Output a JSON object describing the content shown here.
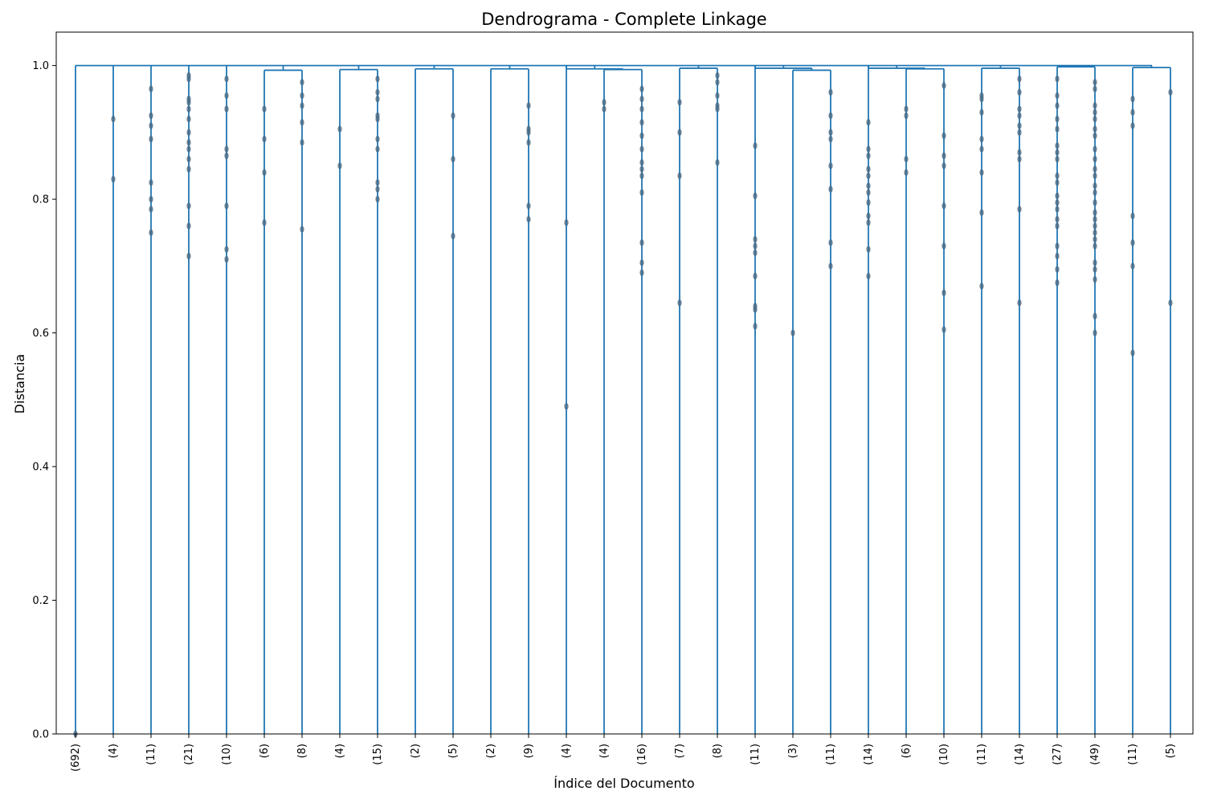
{
  "chart_data": {
    "type": "dendrogram",
    "title": "Dendrograma - Complete Linkage",
    "xlabel": "Índice del Documento",
    "ylabel": "Distancia",
    "ylim": [
      0.0,
      1.05
    ],
    "yticks": [
      "0.0",
      "0.2",
      "0.4",
      "0.6",
      "0.8",
      "1.0"
    ],
    "line_color": "#1f77b4",
    "grid": false,
    "leaves": [
      "(692)",
      "(4)",
      "(11)",
      "(21)",
      "(10)",
      "(6)",
      "(8)",
      "(4)",
      "(15)",
      "(2)",
      "(5)",
      "(2)",
      "(9)",
      "(4)",
      "(4)",
      "(16)",
      "(7)",
      "(8)",
      "(11)",
      "(3)",
      "(11)",
      "(14)",
      "(6)",
      "(10)",
      "(11)",
      "(14)",
      "(27)",
      "(49)",
      "(11)",
      "(5)"
    ],
    "pairs": [
      {
        "leaves": [
          5,
          6
        ],
        "height": 0.993
      },
      {
        "leaves": [
          7,
          8
        ],
        "height": 0.994
      },
      {
        "leaves": [
          9,
          10
        ],
        "height": 0.995
      },
      {
        "leaves": [
          11,
          12
        ],
        "height": 0.995
      },
      {
        "leaves": [
          14,
          15
        ],
        "height": 0.994
      },
      {
        "leaves": [
          16,
          17
        ],
        "height": 0.996
      },
      {
        "leaves": [
          19,
          20
        ],
        "height": 0.993
      },
      {
        "leaves": [
          22,
          23
        ],
        "height": 0.995
      },
      {
        "leaves": [
          24,
          25
        ],
        "height": 0.996
      },
      {
        "leaves": [
          26,
          27
        ],
        "height": 0.998
      },
      {
        "leaves": [
          28,
          29
        ],
        "height": 0.997
      }
    ],
    "pair_joins": [
      {
        "leaf": 13,
        "pair": 4,
        "height": 0.995
      },
      {
        "leaf": 18,
        "pair": 6,
        "height": 0.996
      },
      {
        "leaf": 21,
        "pair": 7,
        "height": 0.996
      }
    ],
    "top_height": 1.0,
    "internal_points": [
      [
        0.0
      ],
      [
        0.92,
        0.83
      ],
      [
        0.965,
        0.925,
        0.91,
        0.89,
        0.825,
        0.8,
        0.785,
        0.75
      ],
      [
        0.985,
        0.98,
        0.95,
        0.945,
        0.935,
        0.92,
        0.9,
        0.885,
        0.875,
        0.86,
        0.845,
        0.79,
        0.76,
        0.715
      ],
      [
        0.98,
        0.955,
        0.935,
        0.875,
        0.865,
        0.79,
        0.725,
        0.71
      ],
      [
        0.935,
        0.89,
        0.84,
        0.765
      ],
      [
        0.975,
        0.955,
        0.94,
        0.915,
        0.885,
        0.755
      ],
      [
        0.905,
        0.85
      ],
      [
        0.98,
        0.96,
        0.95,
        0.925,
        0.92,
        0.89,
        0.875,
        0.825,
        0.815,
        0.8
      ],
      [],
      [
        0.925,
        0.86,
        0.745
      ],
      [],
      [
        0.94,
        0.905,
        0.9,
        0.885,
        0.79,
        0.77
      ],
      [
        0.765,
        0.49
      ],
      [
        0.945,
        0.935
      ],
      [
        0.965,
        0.95,
        0.935,
        0.915,
        0.895,
        0.875,
        0.855,
        0.845,
        0.835,
        0.81,
        0.735,
        0.705,
        0.69
      ],
      [
        0.945,
        0.9,
        0.835,
        0.645
      ],
      [
        0.985,
        0.975,
        0.955,
        0.94,
        0.935,
        0.855
      ],
      [
        0.88,
        0.805,
        0.74,
        0.73,
        0.72,
        0.685,
        0.64,
        0.635,
        0.61
      ],
      [
        0.6
      ],
      [
        0.96,
        0.925,
        0.9,
        0.89,
        0.85,
        0.815,
        0.735,
        0.7
      ],
      [
        0.915,
        0.875,
        0.865,
        0.845,
        0.835,
        0.82,
        0.81,
        0.795,
        0.775,
        0.765,
        0.725,
        0.685
      ],
      [
        0.935,
        0.925,
        0.86,
        0.84
      ],
      [
        0.97,
        0.895,
        0.865,
        0.85,
        0.79,
        0.73,
        0.66,
        0.605
      ],
      [
        0.955,
        0.95,
        0.93,
        0.89,
        0.875,
        0.84,
        0.78,
        0.67
      ],
      [
        0.98,
        0.96,
        0.935,
        0.925,
        0.91,
        0.9,
        0.87,
        0.86,
        0.785,
        0.645
      ],
      [
        0.98,
        0.955,
        0.94,
        0.92,
        0.905,
        0.88,
        0.87,
        0.86,
        0.835,
        0.825,
        0.805,
        0.795,
        0.785,
        0.77,
        0.76,
        0.73,
        0.715,
        0.695,
        0.675
      ],
      [
        0.975,
        0.965,
        0.94,
        0.93,
        0.92,
        0.905,
        0.895,
        0.875,
        0.86,
        0.845,
        0.835,
        0.82,
        0.81,
        0.795,
        0.78,
        0.77,
        0.76,
        0.75,
        0.74,
        0.73,
        0.705,
        0.695,
        0.68,
        0.625,
        0.6
      ],
      [
        0.95,
        0.93,
        0.91,
        0.775,
        0.735,
        0.7,
        0.57
      ],
      [
        0.96,
        0.645
      ]
    ]
  }
}
